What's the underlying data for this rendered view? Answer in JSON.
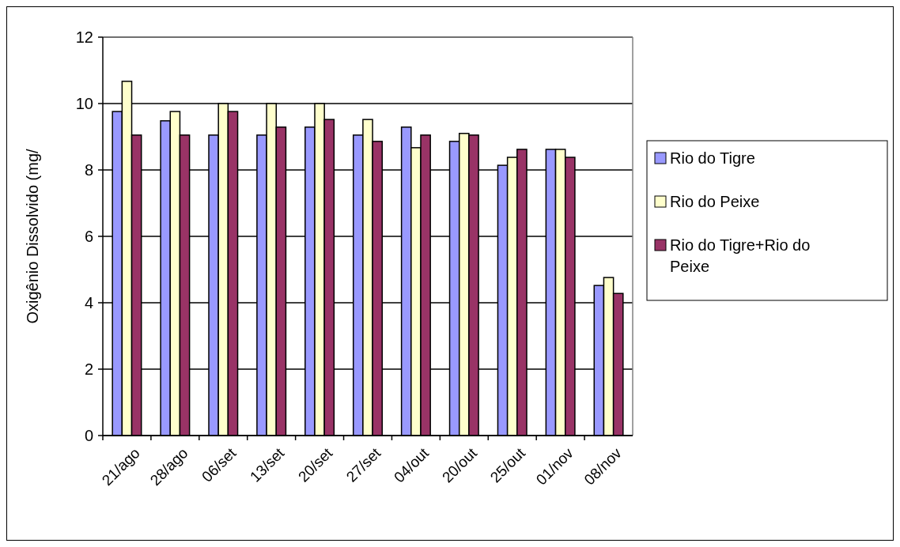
{
  "chart_data": {
    "type": "bar",
    "ylabel": "Oxigênio Dissolvido (mg/",
    "categories": [
      "21/ago",
      "28/ago",
      "06/set",
      "13/set",
      "20/set",
      "27/set",
      "04/out",
      "20/out",
      "25/out",
      "01/nov",
      "08/nov"
    ],
    "series": [
      {
        "name": "Rio do Tigre",
        "color": "#9999ff",
        "values": [
          9.76,
          9.48,
          9.05,
          9.05,
          9.29,
          9.05,
          9.29,
          8.86,
          8.14,
          8.62,
          4.52
        ]
      },
      {
        "name": "Rio do Peixe",
        "color": "#ffffcc",
        "values": [
          10.67,
          9.76,
          10,
          10,
          10,
          9.52,
          8.67,
          9.1,
          8.38,
          8.62,
          4.76
        ]
      },
      {
        "name": "Rio do Tigre+Rio do Peixe",
        "color": "#993366",
        "values": [
          9.05,
          9.05,
          9.76,
          9.29,
          9.52,
          8.86,
          9.05,
          9.05,
          8.62,
          8.38,
          4.28
        ]
      }
    ],
    "ylim": [
      0,
      12
    ],
    "yticks": [
      0,
      2,
      4,
      6,
      8,
      10,
      12
    ],
    "grid": "y",
    "legend": "right"
  }
}
